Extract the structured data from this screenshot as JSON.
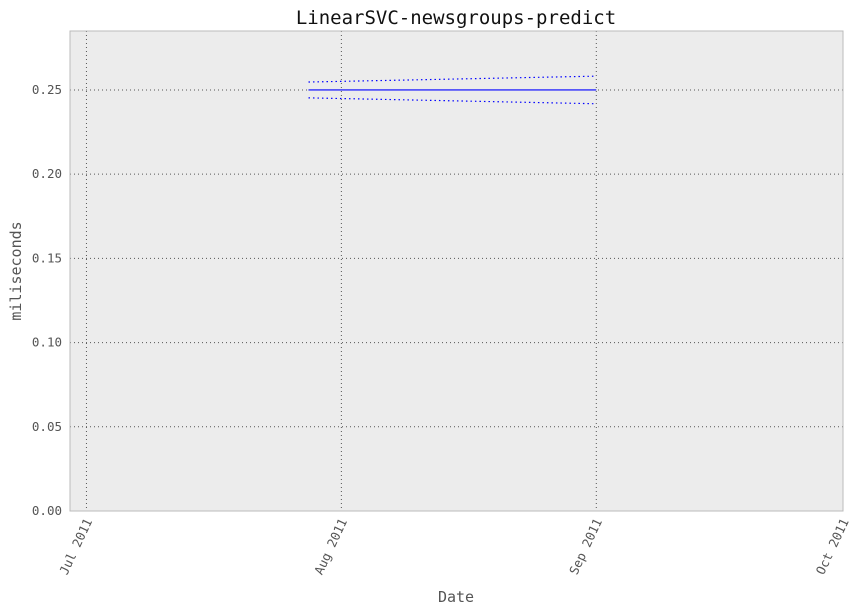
{
  "chart_data": {
    "type": "line",
    "title": "LinearSVC-newsgroups-predict",
    "xlabel": "Date",
    "ylabel": "miliseconds",
    "x_range": [
      "2011-06-29",
      "2011-10-01"
    ],
    "ylim": [
      0,
      0.285
    ],
    "x_ticks": [
      {
        "date": "2011-07-01",
        "label": "Jul 2011"
      },
      {
        "date": "2011-08-01",
        "label": "Aug 2011"
      },
      {
        "date": "2011-09-01",
        "label": "Sep 2011"
      },
      {
        "date": "2011-10-01",
        "label": "Oct 2011"
      }
    ],
    "y_ticks": [
      {
        "value": 0.0,
        "label": "0.00"
      },
      {
        "value": 0.05,
        "label": "0.05"
      },
      {
        "value": 0.1,
        "label": "0.10"
      },
      {
        "value": 0.15,
        "label": "0.15"
      },
      {
        "value": 0.2,
        "label": "0.20"
      },
      {
        "value": 0.25,
        "label": "0.25"
      }
    ],
    "grid": true,
    "series": [
      {
        "role": "mean",
        "style": "solid",
        "color": "#0000ff",
        "x": [
          "2011-07-28",
          "2011-09-01"
        ],
        "y": [
          0.25,
          0.25
        ]
      },
      {
        "role": "upper",
        "style": "dotted",
        "color": "#0000ff",
        "x": [
          "2011-07-28",
          "2011-09-01"
        ],
        "y": [
          0.2547,
          0.2582
        ]
      },
      {
        "role": "lower",
        "style": "dotted",
        "color": "#0000ff",
        "x": [
          "2011-07-28",
          "2011-09-01"
        ],
        "y": [
          0.2453,
          0.2418
        ]
      }
    ]
  },
  "colors": {
    "plot_background": "#ececec",
    "frame": "#bbbbbb",
    "grid": "#555555",
    "line": "#0000ff"
  }
}
